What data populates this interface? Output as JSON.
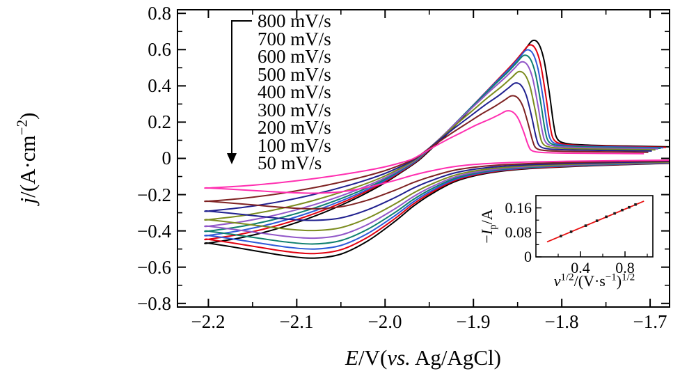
{
  "chart_data": {
    "type": "line",
    "title": "",
    "description": "Cyclic voltammograms at different scan rates with inset of anodic peak current vs square root of scan rate",
    "xlabel_parts": {
      "p1": "E",
      "p2": "/V(",
      "p3": "vs.",
      "p4": " Ag/AgCl)"
    },
    "ylabel_parts": {
      "p1": "j",
      "p2": "/(A·cm",
      "sup": "−2",
      "p3": ")"
    },
    "xlim": [
      -2.235,
      -1.678
    ],
    "ylim": [
      -0.82,
      0.82
    ],
    "x_ticks": [
      -2.2,
      -2.1,
      -2.0,
      -1.9,
      -1.8,
      -1.7
    ],
    "x_tick_labels": [
      "−2.2",
      "−2.1",
      "−2.0",
      "−1.9",
      "−1.8",
      "−1.7"
    ],
    "x_minor_ticks": [
      -2.15,
      -2.05,
      -1.95,
      -1.85,
      -1.75
    ],
    "y_ticks": [
      0.8,
      0.6,
      0.4,
      0.2,
      0,
      -0.2,
      -0.4,
      -0.6,
      -0.8
    ],
    "y_tick_labels": [
      "0.8",
      "0.6",
      "0.4",
      "0.2",
      "0",
      "−0.2",
      "−0.4",
      "−0.6",
      "−0.8"
    ],
    "y_minor_ticks": [
      0.7,
      0.5,
      0.3,
      0.1,
      -0.1,
      -0.3,
      -0.5,
      -0.7
    ],
    "legend_arrow": "down",
    "series": [
      {
        "name": "800 mV/s",
        "scan_rate_mV_per_s": 800,
        "color": "#000000",
        "anodic_peak_j": 0.65,
        "cathodic_min_j": 0.55,
        "anodic_peak_x": -1.833,
        "peak_x_shift": 0.0
      },
      {
        "name": "700 mV/s",
        "scan_rate_mV_per_s": 700,
        "color": "#e1000f",
        "anodic_peak_j": 0.625,
        "cathodic_min_j": 0.525,
        "anodic_peak_x": -1.837,
        "peak_x_shift": -0.004
      },
      {
        "name": "600 mV/s",
        "scan_rate_mV_per_s": 600,
        "color": "#2e59d8",
        "anodic_peak_j": 0.598,
        "cathodic_min_j": 0.5,
        "anodic_peak_x": -1.84,
        "peak_x_shift": -0.007
      },
      {
        "name": "500 mV/s",
        "scan_rate_mV_per_s": 500,
        "color": "#0e7f6e",
        "anodic_peak_j": 0.568,
        "cathodic_min_j": 0.472,
        "anodic_peak_x": -1.843,
        "peak_x_shift": -0.01
      },
      {
        "name": "400 mV/s",
        "scan_rate_mV_per_s": 400,
        "color": "#9156c8",
        "anodic_peak_j": 0.532,
        "cathodic_min_j": 0.44,
        "anodic_peak_x": -1.846,
        "peak_x_shift": -0.013
      },
      {
        "name": "300 mV/s",
        "scan_rate_mV_per_s": 300,
        "color": "#7b8c1e",
        "anodic_peak_j": 0.478,
        "cathodic_min_j": 0.398,
        "anodic_peak_x": -1.849,
        "peak_x_shift": -0.016
      },
      {
        "name": "200 mV/s",
        "scan_rate_mV_per_s": 200,
        "color": "#20208f",
        "anodic_peak_j": 0.415,
        "cathodic_min_j": 0.342,
        "anodic_peak_x": -1.853,
        "peak_x_shift": -0.02
      },
      {
        "name": "100 mV/s",
        "scan_rate_mV_per_s": 100,
        "color": "#7e2222",
        "anodic_peak_j": 0.345,
        "cathodic_min_j": 0.278,
        "anodic_peak_x": -1.857,
        "peak_x_shift": -0.024
      },
      {
        "name": "50 mV/s",
        "scan_rate_mV_per_s": 50,
        "color": "#ff2fb0",
        "anodic_peak_j": 0.262,
        "cathodic_min_j": 0.192,
        "anodic_peak_x": -1.862,
        "peak_x_shift": -0.029
      }
    ],
    "curve_template": {
      "forward": [
        [
          -1.678,
          -0.05
        ],
        [
          -1.7,
          -0.055
        ],
        [
          -1.77,
          -0.075
        ],
        [
          -1.84,
          -0.105
        ],
        [
          -1.885,
          -0.15
        ],
        [
          -1.92,
          -0.23
        ],
        [
          -1.948,
          -0.36
        ],
        [
          -1.968,
          -0.48
        ],
        [
          -1.99,
          -0.64
        ],
        [
          -2.02,
          -0.83
        ],
        [
          -2.05,
          -0.96
        ],
        [
          -2.08,
          -1.0
        ],
        [
          -2.11,
          -0.98
        ],
        [
          -2.145,
          -0.93
        ],
        [
          -2.175,
          -0.885
        ],
        [
          -2.2,
          -0.85
        ]
      ],
      "return": [
        [
          -2.2,
          -0.85,
          "c",
          0
        ],
        [
          -2.16,
          -0.79,
          "c",
          0
        ],
        [
          -2.12,
          -0.7,
          "c",
          0
        ],
        [
          -2.08,
          -0.58,
          "c",
          0
        ],
        [
          -2.04,
          -0.43,
          "c",
          0
        ],
        [
          -2.005,
          -0.27,
          "c",
          0
        ],
        [
          -1.98,
          -0.13,
          "c",
          0.1
        ],
        [
          -1.962,
          -0.02,
          "c",
          0.25
        ],
        [
          -1.945,
          0.1,
          "p",
          0.45
        ],
        [
          -1.928,
          0.22,
          "p",
          0.65
        ],
        [
          -1.908,
          0.38,
          "p",
          0.8
        ],
        [
          -1.888,
          0.54,
          "p",
          0.9
        ],
        [
          -1.868,
          0.7,
          "p",
          1
        ],
        [
          -1.852,
          0.83,
          "p",
          1
        ],
        [
          -1.841,
          0.93,
          "p",
          1
        ],
        [
          -1.833,
          1.0,
          "p",
          1
        ],
        [
          -1.826,
          0.97,
          "p",
          1
        ],
        [
          -1.82,
          0.83,
          "p",
          1
        ],
        [
          -1.814,
          0.55,
          "p",
          1
        ],
        [
          -1.809,
          0.28,
          "p",
          1
        ],
        [
          -1.805,
          0.165,
          "p",
          1
        ],
        [
          -1.796,
          0.128,
          "p",
          1
        ],
        [
          -1.78,
          0.116,
          "p",
          1
        ],
        [
          -1.75,
          0.108,
          "p",
          1
        ],
        [
          -1.7,
          0.101,
          "p",
          1
        ],
        [
          -1.678,
          0.098,
          "p",
          1
        ]
      ]
    },
    "inset": {
      "type": "scatter",
      "xlabel_parts": {
        "p1": "v",
        "s1": "1/2",
        "p2": "/(V·s",
        "s2": "−1",
        "p3": ")",
        "s3": "1/2"
      },
      "ylabel_parts": {
        "p1": "−",
        "p2": "I",
        "sub": "p",
        "p3": "/A"
      },
      "xlim": [
        0,
        1.05
      ],
      "ylim": [
        0,
        0.2
      ],
      "x_ticks": [
        0.4,
        0.8
      ],
      "x_tick_labels": [
        "0.4",
        "0.8"
      ],
      "x_minor_ticks": [
        0.2,
        0.6,
        1.0
      ],
      "y_ticks": [
        0,
        0.08,
        0.16
      ],
      "y_tick_labels": [
        "0",
        "0.08",
        "0.16"
      ],
      "y_minor_ticks": [
        0.04,
        0.12,
        0.2
      ],
      "x": [
        0.224,
        0.316,
        0.447,
        0.548,
        0.632,
        0.707,
        0.775,
        0.837,
        0.894
      ],
      "y": [
        0.068,
        0.082,
        0.102,
        0.118,
        0.131,
        0.142,
        0.153,
        0.162,
        0.171
      ],
      "line_color": "#e81010",
      "marker_color": "#1a1a1a",
      "fit_line": {
        "x1": 0.1,
        "y1": 0.049,
        "x2": 0.97,
        "y2": 0.182
      }
    }
  }
}
